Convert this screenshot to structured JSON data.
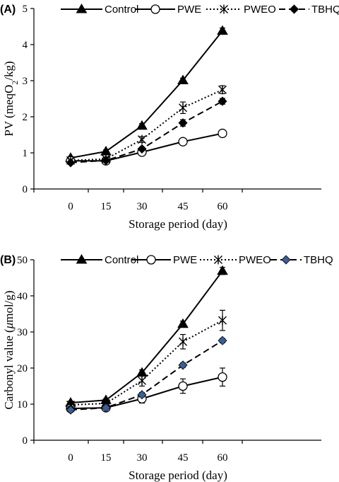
{
  "chart_data": [
    {
      "type": "line",
      "panel_label": "(A)",
      "xlabel": "Storage period (day)",
      "ylabel_main": "PV (meqO",
      "ylabel_sub": "2",
      "ylabel_tail": "/kg)",
      "x": [
        0,
        15,
        30,
        45,
        60
      ],
      "xticks": [
        "0",
        "15",
        "30",
        "45",
        "60"
      ],
      "ylim": [
        0,
        5
      ],
      "yticks": [
        "0",
        "1",
        "2",
        "3",
        "4",
        "5"
      ],
      "series": [
        {
          "name": "Control",
          "values": [
            0.86,
            1.04,
            1.75,
            3.01,
            4.38
          ],
          "errors": [
            0.04,
            0.04,
            0.06,
            0.06,
            0.08
          ],
          "marker": "triangle",
          "line": "solid",
          "markerColor": "#000000"
        },
        {
          "name": "PWE",
          "values": [
            0.78,
            0.78,
            1.02,
            1.31,
            1.54
          ],
          "errors": [
            0.03,
            0.03,
            0.04,
            0.04,
            0.05
          ],
          "marker": "circle",
          "line": "solid",
          "markerColor": "#ffffff"
        },
        {
          "name": "PWEO",
          "values": [
            0.79,
            0.83,
            1.37,
            2.25,
            2.75
          ],
          "errors": [
            0.04,
            0.05,
            0.08,
            0.16,
            0.11
          ],
          "marker": "star",
          "line": "dotted",
          "markerColor": "#000000"
        },
        {
          "name": "TBHQ",
          "values": [
            0.73,
            0.79,
            1.11,
            1.83,
            2.43
          ],
          "errors": [
            0.03,
            0.04,
            0.05,
            0.09,
            0.08
          ],
          "marker": "diamond",
          "line": "dashed",
          "markerColor": "#000000"
        }
      ]
    },
    {
      "type": "line",
      "panel_label": "(B)",
      "xlabel": "Storage period (day)",
      "ylabel_main": "Carbonyl value (",
      "ylabel_mu": "μ",
      "ylabel_tail": "mol/g)",
      "x": [
        0,
        15,
        30,
        45,
        60
      ],
      "xticks": [
        "0",
        "15",
        "30",
        "45",
        "60"
      ],
      "ylim": [
        0,
        50
      ],
      "yticks": [
        "0",
        "10",
        "20",
        "30",
        "40",
        "50"
      ],
      "series": [
        {
          "name": "Control",
          "values": [
            10.4,
            11.1,
            18.7,
            32.2,
            46.9
          ],
          "errors": [
            0.4,
            0.4,
            0.8,
            0.8,
            1.0
          ],
          "marker": "triangle",
          "line": "solid",
          "markerColor": "#000000"
        },
        {
          "name": "PWE",
          "values": [
            8.8,
            9.0,
            11.5,
            15.0,
            17.5
          ],
          "errors": [
            0.5,
            0.5,
            1.2,
            2.0,
            2.5
          ],
          "marker": "circle",
          "line": "solid",
          "markerColor": "#ffffff"
        },
        {
          "name": "PWEO",
          "values": [
            9.8,
            10.2,
            16.5,
            27.3,
            33.2
          ],
          "errors": [
            0.5,
            0.5,
            1.5,
            2.0,
            2.8
          ],
          "marker": "star",
          "line": "dotted",
          "markerColor": "#000000"
        },
        {
          "name": "TBHQ",
          "values": [
            8.4,
            9.0,
            12.6,
            20.8,
            27.6
          ],
          "errors": [
            0.3,
            0.4,
            0.6,
            0.6,
            0.6
          ],
          "marker": "diamond",
          "line": "dashed",
          "markerColor": "#3a5e95"
        }
      ]
    }
  ]
}
